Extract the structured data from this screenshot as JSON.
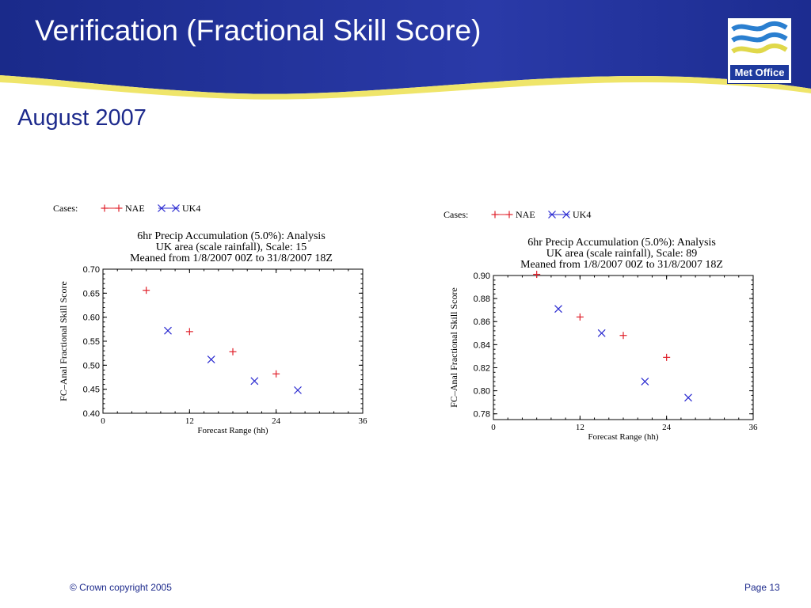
{
  "slide": {
    "title": "Verification (Fractional Skill Score)",
    "subtitle": "August 2007",
    "logo_text": "Met Office",
    "footer_copyright": "© Crown copyright 2005",
    "footer_page": "Page 13",
    "colors": {
      "banner": "#1e2f93",
      "wave": "#f0e86a",
      "title_text": "#ffffff",
      "subtitle_text": "#1d2a8c"
    }
  },
  "chart_data": [
    {
      "type": "scatter",
      "legend_label": "Cases:",
      "title_lines": [
        "6hr Precip Accumulation (5.0%):  Analysis",
        "UK area (scale rainfall), Scale: 15",
        "Meaned from 1/8/2007 00Z to 31/8/2007 18Z"
      ],
      "xlabel": "Forecast Range (hh)",
      "ylabel": "FC–Anal Fractional Skill Score",
      "xlim": [
        0,
        36
      ],
      "ylim": [
        0.4,
        0.7
      ],
      "xticks": [
        0,
        12,
        24,
        36
      ],
      "xtick_labels": [
        "0",
        "12",
        "24",
        "36"
      ],
      "yticks": [
        0.4,
        0.45,
        0.5,
        0.55,
        0.6,
        0.65,
        0.7
      ],
      "ytick_labels": [
        "0.40",
        "0.45",
        "0.50",
        "0.55",
        "0.60",
        "0.65",
        "0.70"
      ],
      "series": [
        {
          "name": "NAE",
          "marker": "plus",
          "color": "#e0202a",
          "x": [
            6,
            12,
            18,
            24
          ],
          "y": [
            0.656,
            0.57,
            0.528,
            0.482
          ]
        },
        {
          "name": "UK4",
          "marker": "cross",
          "color": "#2a2ad0",
          "x": [
            9,
            15,
            21,
            27
          ],
          "y": [
            0.572,
            0.512,
            0.467,
            0.448
          ]
        }
      ]
    },
    {
      "type": "scatter",
      "legend_label": "Cases:",
      "title_lines": [
        "6hr Precip Accumulation (5.0%):  Analysis",
        "UK area (scale rainfall), Scale: 89",
        "Meaned from 1/8/2007 00Z to 31/8/2007 18Z"
      ],
      "xlabel": "Forecast Range (hh)",
      "ylabel": "FC–Anal Fractional Skill Score",
      "xlim": [
        0,
        36
      ],
      "ylim": [
        0.775,
        0.9
      ],
      "xticks": [
        0,
        12,
        24,
        36
      ],
      "xtick_labels": [
        "0",
        "12",
        "24",
        "36"
      ],
      "yticks": [
        0.78,
        0.8,
        0.82,
        0.84,
        0.86,
        0.88,
        0.9
      ],
      "ytick_labels": [
        "0.78",
        "0.80",
        "0.82",
        "0.84",
        "0.86",
        "0.88",
        "0.90"
      ],
      "series": [
        {
          "name": "NAE",
          "marker": "plus",
          "color": "#e0202a",
          "x": [
            6,
            12,
            18,
            24
          ],
          "y": [
            0.901,
            0.864,
            0.848,
            0.829
          ]
        },
        {
          "name": "UK4",
          "marker": "cross",
          "color": "#2a2ad0",
          "x": [
            9,
            15,
            21,
            27
          ],
          "y": [
            0.871,
            0.85,
            0.808,
            0.794
          ]
        }
      ]
    }
  ]
}
